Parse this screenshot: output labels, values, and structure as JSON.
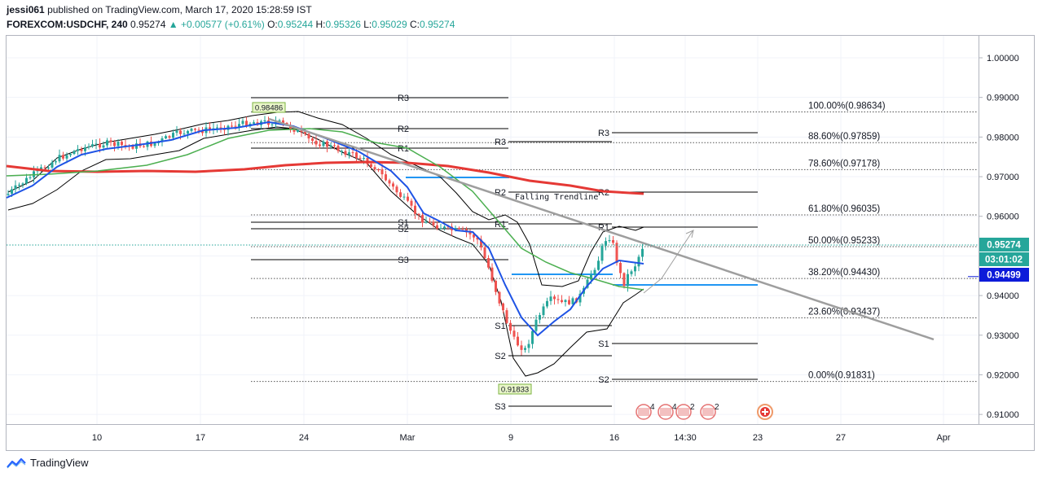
{
  "header": {
    "user": "jessi061",
    "published_text": "published on TradingView.com, March 17, 2020 15:28:59 IST",
    "symbol": "FOREXCOM:USDCHF, 240",
    "last": "0.95274",
    "change": "+0.00577 (+0.61%)",
    "open_label": "O:",
    "open": "0.95244",
    "high_label": "H:",
    "high": "0.95326",
    "low_label": "L:",
    "low": "0.95029",
    "close_label": "C:",
    "close": "0.95274"
  },
  "footer": {
    "brand": "TradingView"
  },
  "colors": {
    "up": "#26a69a",
    "down": "#ef5350",
    "blue_ma": "#1e53e5",
    "green_ma": "#4caf50",
    "red_ma": "#e53935",
    "trendline": "#9e9e9e",
    "fib": "#555555",
    "pivot_blue": "#2196f3"
  },
  "chart_data": {
    "type": "candlestick",
    "x_ticks": [
      "10",
      "17",
      "24",
      "Mar",
      "9",
      "16",
      "14:30",
      "23",
      "27",
      "Apr"
    ],
    "y_ticks": [
      "1.00000",
      "0.99000",
      "0.98000",
      "0.97000",
      "0.96000",
      "0.95000",
      "0.94000",
      "0.93000",
      "0.92000",
      "0.91000"
    ],
    "ylim": [
      0.907,
      1.003
    ],
    "fib_levels": [
      {
        "label": "100.00%(0.98634)",
        "value": 0.98634
      },
      {
        "label": "88.60%(0.97859)",
        "value": 0.97859
      },
      {
        "label": "78.60%(0.97178)",
        "value": 0.97178
      },
      {
        "label": "61.80%(0.96035)",
        "value": 0.96035
      },
      {
        "label": "50.00%(0.95233)",
        "value": 0.95233
      },
      {
        "label": "38.20%(0.94430)",
        "value": 0.9443
      },
      {
        "label": "23.60%(0.93437)",
        "value": 0.93437
      },
      {
        "label": "0.00%(0.91831)",
        "value": 0.91831
      }
    ],
    "pivot_labels": [
      "R3",
      "R2",
      "R1",
      "S1",
      "S2",
      "S3",
      "R3",
      "R2",
      "R1",
      "S1",
      "S2",
      "S3",
      "R3",
      "R2",
      "R1",
      "S1",
      "S2"
    ],
    "price_tags": [
      {
        "label": "0.95274",
        "value": 0.95274,
        "color": "#26a69a"
      },
      {
        "label": "03:01:02",
        "value": 0.95274,
        "color": "#26a69a"
      },
      {
        "label": "0.94499",
        "value": 0.94499,
        "color": "#0d1bd9"
      }
    ],
    "annotations": [
      {
        "text": "Falling Trendline"
      },
      {
        "text": "0.98486",
        "value": 0.98486
      },
      {
        "text": "0.91833",
        "value": 0.91833
      }
    ],
    "event_badges": [
      "4",
      "4",
      "2",
      "2"
    ]
  }
}
